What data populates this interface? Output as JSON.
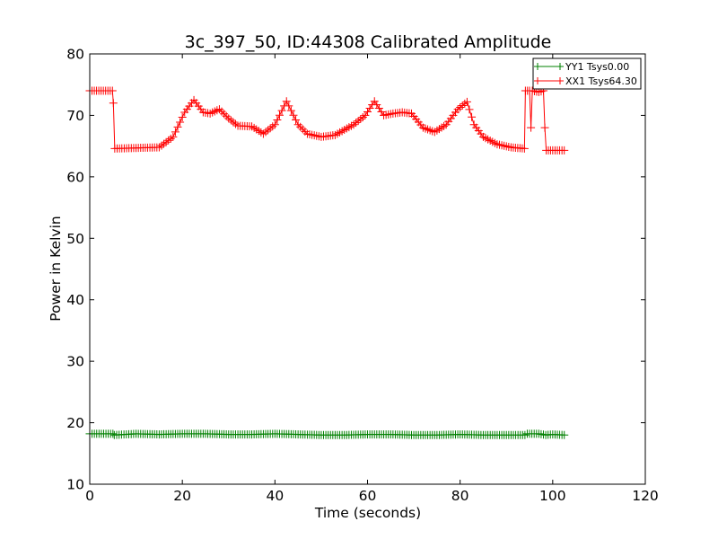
{
  "chart_data": {
    "type": "line",
    "title": "3c_397_50, ID:44308 Calibrated Amplitude",
    "xlabel": "Time (seconds)",
    "ylabel": "Power in Kelvin",
    "xlim": [
      0,
      120
    ],
    "ylim": [
      10,
      80
    ],
    "xticks": [
      0,
      20,
      40,
      60,
      80,
      100,
      120
    ],
    "yticks": [
      10,
      20,
      30,
      40,
      50,
      60,
      70,
      80
    ],
    "xtick_labels": [
      "0",
      "20",
      "40",
      "60",
      "80",
      "100",
      "120"
    ],
    "ytick_labels": [
      "10",
      "20",
      "30",
      "40",
      "50",
      "60",
      "70",
      "80"
    ],
    "grid": false,
    "legend_position": "top-right",
    "marker": "+",
    "series": [
      {
        "name": "YY1 Tsys0.00",
        "color": "#008000",
        "x": [
          0,
          5,
          5.3,
          10,
          15,
          20,
          25,
          30,
          35,
          40,
          45,
          50,
          55,
          60,
          65,
          70,
          75,
          80,
          85,
          90,
          94,
          94.5,
          97,
          98.5,
          100,
          102.5
        ],
        "y": [
          18.2,
          18.2,
          18.0,
          18.2,
          18.1,
          18.2,
          18.2,
          18.1,
          18.1,
          18.2,
          18.1,
          18.0,
          18.0,
          18.1,
          18.1,
          18.0,
          18.0,
          18.1,
          18.0,
          18.0,
          18.0,
          18.2,
          18.2,
          18.0,
          18.1,
          18.0
        ]
      },
      {
        "name": "XX1 Tsys64.30",
        "color": "#ff0000",
        "x": [
          0,
          4.9,
          5.1,
          5.4,
          10,
          15,
          18,
          20.5,
          22.5,
          24.5,
          26,
          28,
          30,
          32,
          35,
          37.5,
          40,
          42.5,
          45,
          47,
          50,
          53,
          57,
          59.5,
          61.5,
          63.5,
          65.5,
          67.5,
          69.5,
          72,
          74.5,
          77,
          79.5,
          81.5,
          83,
          85,
          88,
          91,
          93.9,
          94.1,
          95,
          95.3,
          95.6,
          97,
          98,
          98.3,
          98.6,
          100,
          102.5
        ],
        "y": [
          74.0,
          74.0,
          72.0,
          64.6,
          64.7,
          64.8,
          66.5,
          70.5,
          72.5,
          70.5,
          70.3,
          71.0,
          69.5,
          68.3,
          68.2,
          67.0,
          68.5,
          72.3,
          68.5,
          67.0,
          66.5,
          66.8,
          68.5,
          70.0,
          72.3,
          70.0,
          70.3,
          70.5,
          70.3,
          68.0,
          67.3,
          68.5,
          71.0,
          72.2,
          68.5,
          66.5,
          65.3,
          64.8,
          64.6,
          74.0,
          74.0,
          68.0,
          74.0,
          73.8,
          74.0,
          68.0,
          64.3,
          64.3,
          64.3
        ]
      }
    ]
  }
}
